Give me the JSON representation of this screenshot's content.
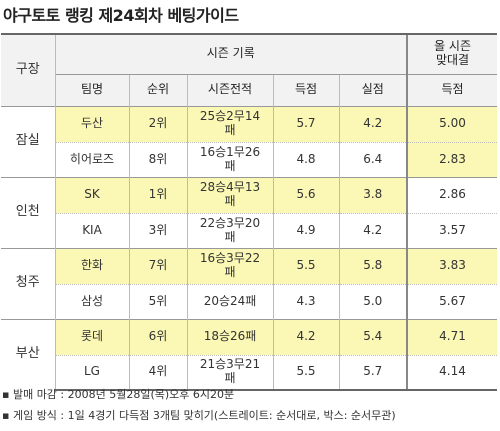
{
  "title": "야구토토 랭킹 제24회차 베팅가이드",
  "header": {
    "venue": "구장",
    "season_record": "시즌 기록",
    "matchup_line1": "올 시즌",
    "matchup_line2": "맞대결",
    "columns": [
      "팀명",
      "순위",
      "시즌전적",
      "득점",
      "실점",
      "득점"
    ]
  },
  "venues": [
    {
      "name": "잠실",
      "teams": [
        {
          "team": "두산",
          "rank": "2위",
          "record_line1": "25승2무14",
          "record_line2": "패",
          "runs_scored": "5.7",
          "runs_allowed": "4.2",
          "h2h_runs": "5.00",
          "highlight": true
        },
        {
          "team": "히어로즈",
          "rank": "8위",
          "record_line1": "16승1무26",
          "record_line2": "패",
          "runs_scored": "4.8",
          "runs_allowed": "6.4",
          "h2h_runs": "2.83",
          "highlight": false
        }
      ]
    },
    {
      "name": "인천",
      "teams": [
        {
          "team": "SK",
          "rank": "1위",
          "record_line1": "28승4무13",
          "record_line2": "패",
          "runs_scored": "5.6",
          "runs_allowed": "3.8",
          "h2h_runs": "2.86",
          "highlight": true
        },
        {
          "team": "KIA",
          "rank": "3위",
          "record_line1": "22승3무20",
          "record_line2": "패",
          "runs_scored": "4.9",
          "runs_allowed": "4.2",
          "h2h_runs": "3.57",
          "highlight": false
        }
      ]
    },
    {
      "name": "청주",
      "teams": [
        {
          "team": "한화",
          "rank": "7위",
          "record_line1": "16승3무22",
          "record_line2": "패",
          "runs_scored": "5.5",
          "runs_allowed": "5.8",
          "h2h_runs": "3.83",
          "highlight": true
        },
        {
          "team": "삼성",
          "rank": "5위",
          "record_line1": "20승24패",
          "record_line2": "",
          "runs_scored": "4.3",
          "runs_allowed": "5.0",
          "h2h_runs": "5.67",
          "highlight": false
        }
      ]
    },
    {
      "name": "부산",
      "teams": [
        {
          "team": "롯데",
          "rank": "6위",
          "record_line1": "18승26패",
          "record_line2": "",
          "runs_scored": "4.2",
          "runs_allowed": "5.4",
          "h2h_runs": "4.71",
          "highlight": true
        },
        {
          "team": "LG",
          "rank": "4위",
          "record_line1": "21승3무21",
          "record_line2": "패",
          "runs_scored": "5.5",
          "runs_allowed": "5.7",
          "h2h_runs": "4.14",
          "highlight": false
        }
      ]
    }
  ],
  "notes": [
    "▪ 발매 마감 : 2008년 5월28일(목)오후 6시20분",
    "▪ 게임 방식 : 1일 4경기 다득점 3개팀 맞히기(스트레이트: 순서대로, 박스: 순서무관)"
  ],
  "colors": {
    "highlight": "#fbf8b6",
    "header_bg": "#f2f2f2"
  }
}
